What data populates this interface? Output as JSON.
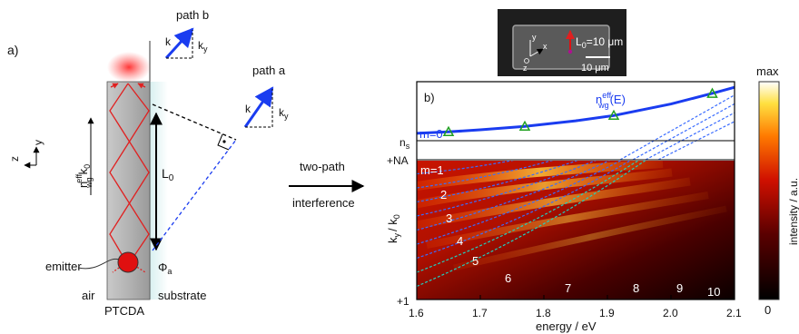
{
  "panel_a": {
    "label": "a)",
    "path_b": "path b",
    "path_a": "path a",
    "k": "k",
    "k_y": "k",
    "k_y_sub": "y",
    "L0": "L",
    "L0_sub": "0",
    "emitter": "emitter",
    "phi": "Φ",
    "phi_sub": "a",
    "air": "air",
    "substrate": "substrate",
    "material": "PTCDA",
    "axis_z": "z",
    "axis_y": "y",
    "n_label": "n",
    "n_sup": "eff",
    "n_sub": "wg",
    "k0": "k",
    "k0_sub": "0"
  },
  "middle": {
    "line1": "two-path",
    "line2": "interference"
  },
  "inset": {
    "L0_text": "L",
    "L0_sub": "0",
    "L0_value": "=10 μm",
    "scale": "10 μm",
    "axis_x": "x",
    "axis_y": "y",
    "axis_z": "z"
  },
  "colorbar": {
    "max": "max",
    "min": "0",
    "label": "intensity / a.u."
  },
  "chart_data": {
    "type": "line",
    "panel_label": "b)",
    "xlabel": "energy / eV",
    "ylabel_base": "k",
    "ylabel_sub": "y",
    "ylabel_den": "/ k",
    "ylabel_den_sub": "0",
    "xlim": [
      1.6,
      2.1
    ],
    "xticks": [
      "1.6",
      "1.7",
      "1.8",
      "1.9",
      "2.0",
      "2.1"
    ],
    "y_tick_labels": [
      "n",
      "+NA",
      "+1"
    ],
    "y_tick_sub": "s",
    "curve_label": "n",
    "curve_label_sup": "eff",
    "curve_label_sub": "wg",
    "curve_label_arg": "(E)",
    "mode0_label": "m=0",
    "mode_labels": [
      "m=1",
      "2",
      "3",
      "4",
      "5",
      "6",
      "7",
      "8",
      "9",
      "10"
    ],
    "waveguide_curve": {
      "x": [
        1.6,
        1.65,
        1.7,
        1.77,
        1.85,
        1.91,
        2.0,
        2.07,
        2.1
      ],
      "n": [
        1.815,
        1.822,
        1.832,
        1.848,
        1.875,
        1.9,
        1.955,
        2.01,
        2.035
      ]
    },
    "markers": {
      "x": [
        1.65,
        1.77,
        1.91,
        2.065
      ],
      "n": [
        1.822,
        1.848,
        1.9,
        2.005
      ]
    },
    "ns": 1.78,
    "na": 1.72,
    "m_max": 10
  }
}
